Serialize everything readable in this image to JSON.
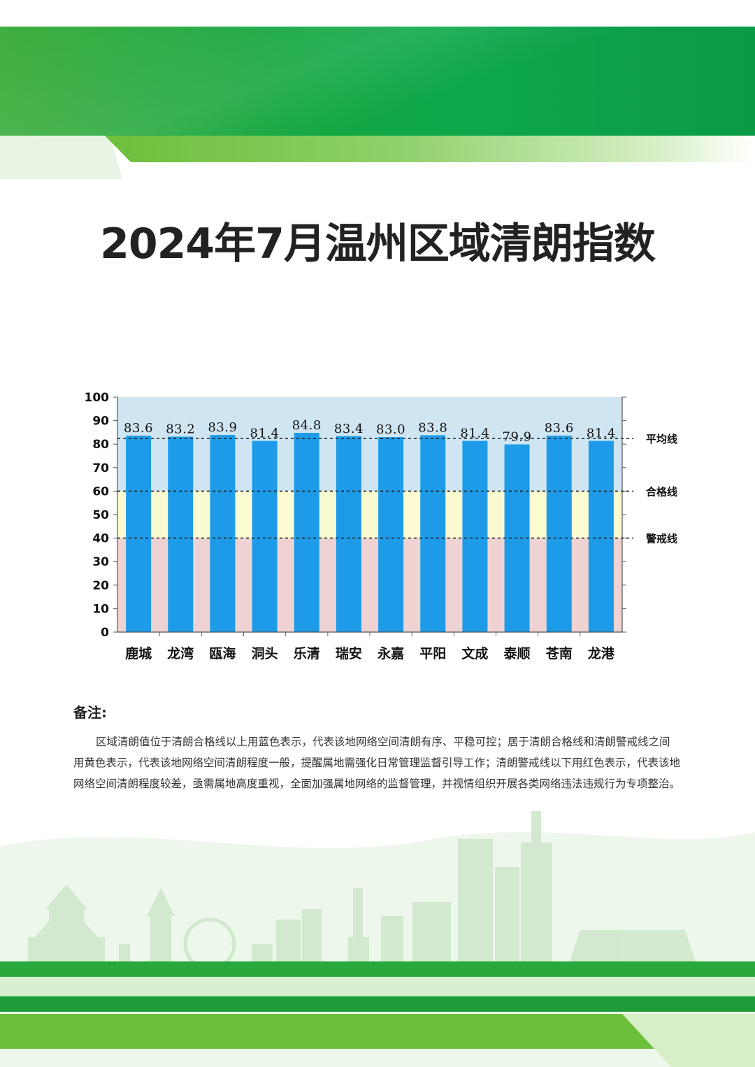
{
  "title": "2024年7月温州区域清朗指数",
  "chart_data": {
    "type": "bar",
    "categories": [
      "鹿城",
      "龙湾",
      "瓯海",
      "洞头",
      "乐清",
      "瑞安",
      "永嘉",
      "平阳",
      "文成",
      "泰顺",
      "苍南",
      "龙港"
    ],
    "values": [
      83.6,
      83.2,
      83.9,
      81.4,
      84.8,
      83.4,
      83.0,
      83.8,
      81.4,
      79.9,
      83.6,
      81.4
    ],
    "value_labels": [
      "83.6",
      "83.2",
      "83.9",
      "81.4",
      "84.8",
      "83.4",
      "83.0",
      "83.8",
      "81.4",
      "79.9",
      "83.6",
      "81.4"
    ],
    "ylim": [
      0,
      100
    ],
    "yticks": [
      "0",
      "10",
      "20",
      "30",
      "40",
      "50",
      "60",
      "70",
      "80",
      "90",
      "100"
    ],
    "reference_lines": [
      {
        "label": "平均线",
        "value": 82.4
      },
      {
        "label": "合格线",
        "value": 60
      },
      {
        "label": "警戒线",
        "value": 40
      }
    ],
    "bands": [
      {
        "from": 60,
        "to": 100,
        "color": "#cfe6f2"
      },
      {
        "from": 40,
        "to": 60,
        "color": "#fbfbd2"
      },
      {
        "from": 0,
        "to": 40,
        "color": "#efd3d3"
      }
    ],
    "bar_color": "#1e9be8"
  },
  "notes": {
    "heading": "备注:",
    "text": "区域清朗值位于清朗合格线以上用蓝色表示，代表该地网络空间清朗有序、平稳可控；居于清朗合格线和清朗警戒线之间用黄色表示，代表该地网络空间清朗程度一般，提醒属地需强化日常管理监督引导工作；清朗警戒线以下用红色表示，代表该地网络空间清朗程度较差，亟需属地高度重视，全面加强属地网络的监督管理，并视情组织开展各类网络违法违规行为专项整治。"
  },
  "colors": {
    "brand_green": "#0ea84a",
    "light_green": "#8fd06a"
  }
}
